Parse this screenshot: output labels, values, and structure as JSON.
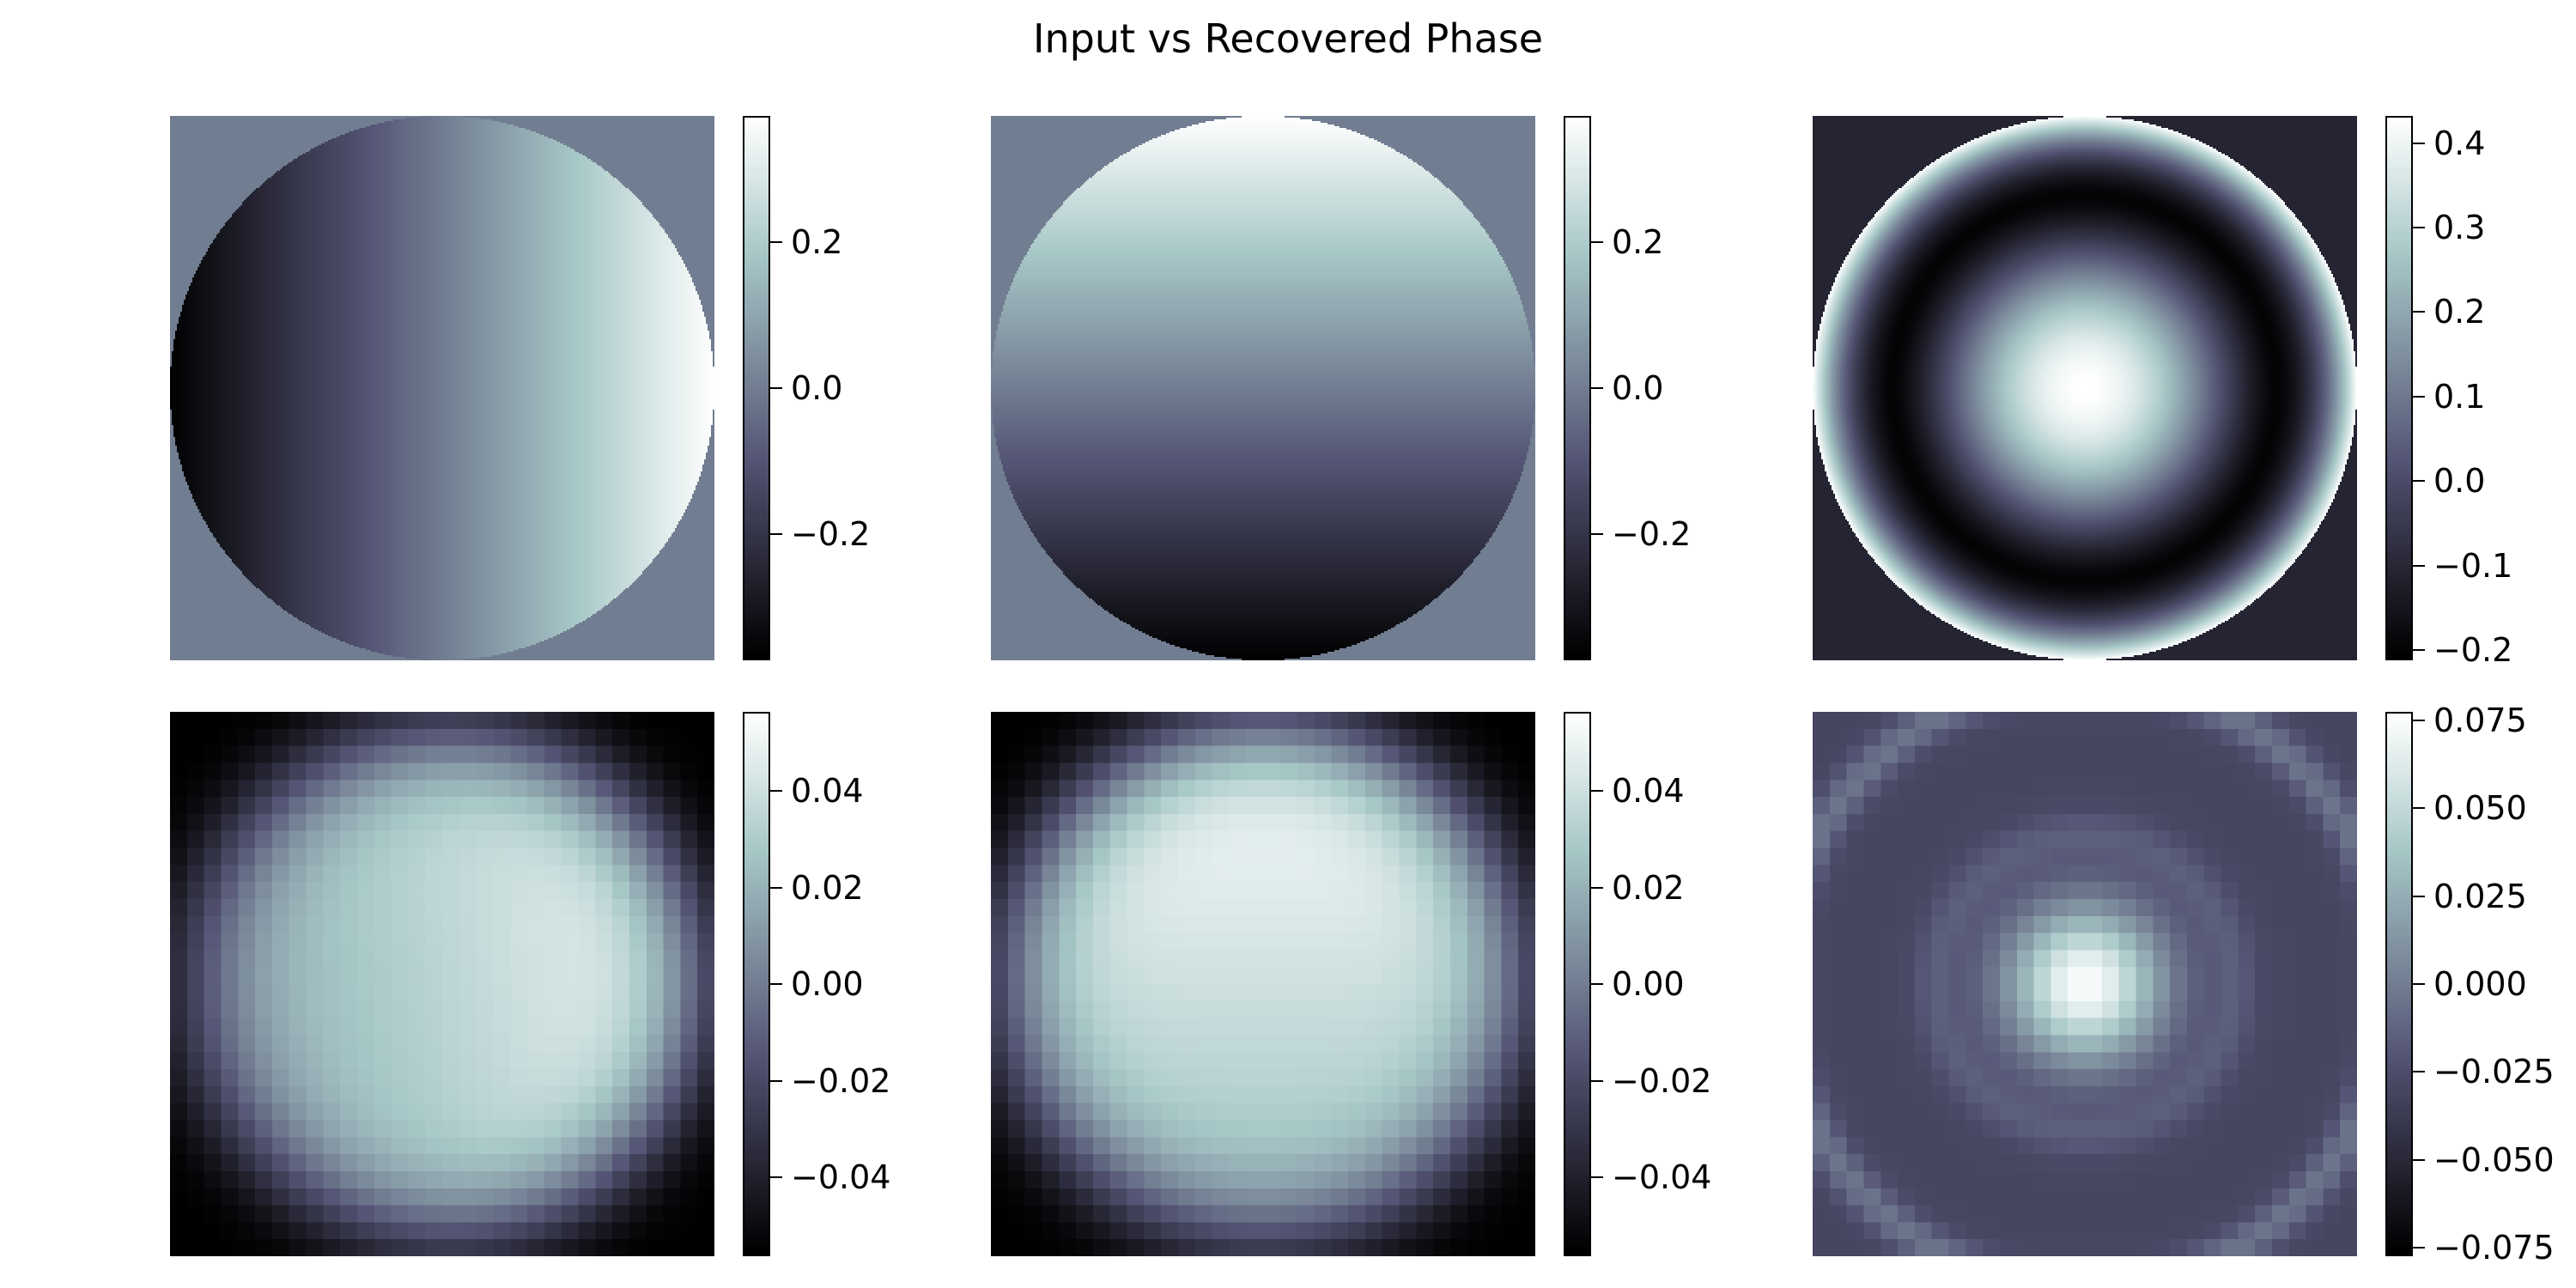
{
  "title": "Input vs Recovered Phase",
  "colormap": "bone",
  "colors": {
    "bone_stops": [
      "#000000",
      "#545474",
      "#a7c7c7",
      "#ffffff"
    ],
    "outside_input": "#6f7a8a"
  },
  "chart_data": [
    {
      "type": "heatmap",
      "row": 1,
      "col": 1,
      "name": "",
      "pattern": "tilt-x",
      "vmin": -0.37,
      "vmax": 0.37,
      "ticks": [
        {
          "value": 0.2,
          "label": "0.2"
        },
        {
          "value": 0.0,
          "label": "0.0"
        },
        {
          "value": -0.2,
          "label": "−0.2"
        }
      ]
    },
    {
      "type": "heatmap",
      "row": 1,
      "col": 2,
      "name": "",
      "pattern": "tilt-y",
      "vmin": -0.37,
      "vmax": 0.37,
      "ticks": [
        {
          "value": 0.2,
          "label": "0.2"
        },
        {
          "value": 0.0,
          "label": "0.0"
        },
        {
          "value": -0.2,
          "label": "−0.2"
        }
      ]
    },
    {
      "type": "heatmap",
      "row": 1,
      "col": 3,
      "name": "",
      "pattern": "defocus",
      "vmin": -0.21,
      "vmax": 0.43,
      "ticks": [
        {
          "value": 0.4,
          "label": "0.4"
        },
        {
          "value": 0.3,
          "label": "0.3"
        },
        {
          "value": 0.2,
          "label": "0.2"
        },
        {
          "value": 0.1,
          "label": "0.1"
        },
        {
          "value": 0.0,
          "label": "0.0"
        },
        {
          "value": -0.1,
          "label": "−0.1"
        },
        {
          "value": -0.2,
          "label": "−0.2"
        }
      ]
    },
    {
      "type": "heatmap",
      "row": 2,
      "col": 1,
      "name": "",
      "pattern": "recovered-tilt-x",
      "grid": 32,
      "vmin": -0.056,
      "vmax": 0.056,
      "ticks": [
        {
          "value": 0.04,
          "label": "0.04"
        },
        {
          "value": 0.02,
          "label": "0.02"
        },
        {
          "value": 0.0,
          "label": "0.00"
        },
        {
          "value": -0.02,
          "label": "−0.02"
        },
        {
          "value": -0.04,
          "label": "−0.04"
        }
      ]
    },
    {
      "type": "heatmap",
      "row": 2,
      "col": 2,
      "name": "",
      "pattern": "recovered-tilt-y",
      "grid": 32,
      "vmin": -0.056,
      "vmax": 0.056,
      "ticks": [
        {
          "value": 0.04,
          "label": "0.04"
        },
        {
          "value": 0.02,
          "label": "0.02"
        },
        {
          "value": 0.0,
          "label": "0.00"
        },
        {
          "value": -0.02,
          "label": "−0.02"
        },
        {
          "value": -0.04,
          "label": "−0.04"
        }
      ]
    },
    {
      "type": "heatmap",
      "row": 2,
      "col": 3,
      "name": "",
      "pattern": "recovered-defocus",
      "grid": 32,
      "vmin": -0.077,
      "vmax": 0.077,
      "ticks": [
        {
          "value": 0.075,
          "label": "0.075"
        },
        {
          "value": 0.05,
          "label": "0.050"
        },
        {
          "value": 0.025,
          "label": "0.025"
        },
        {
          "value": 0.0,
          "label": "0.000"
        },
        {
          "value": -0.025,
          "label": "−0.025"
        },
        {
          "value": -0.05,
          "label": "−0.050"
        },
        {
          "value": -0.075,
          "label": "−0.075"
        }
      ]
    }
  ]
}
